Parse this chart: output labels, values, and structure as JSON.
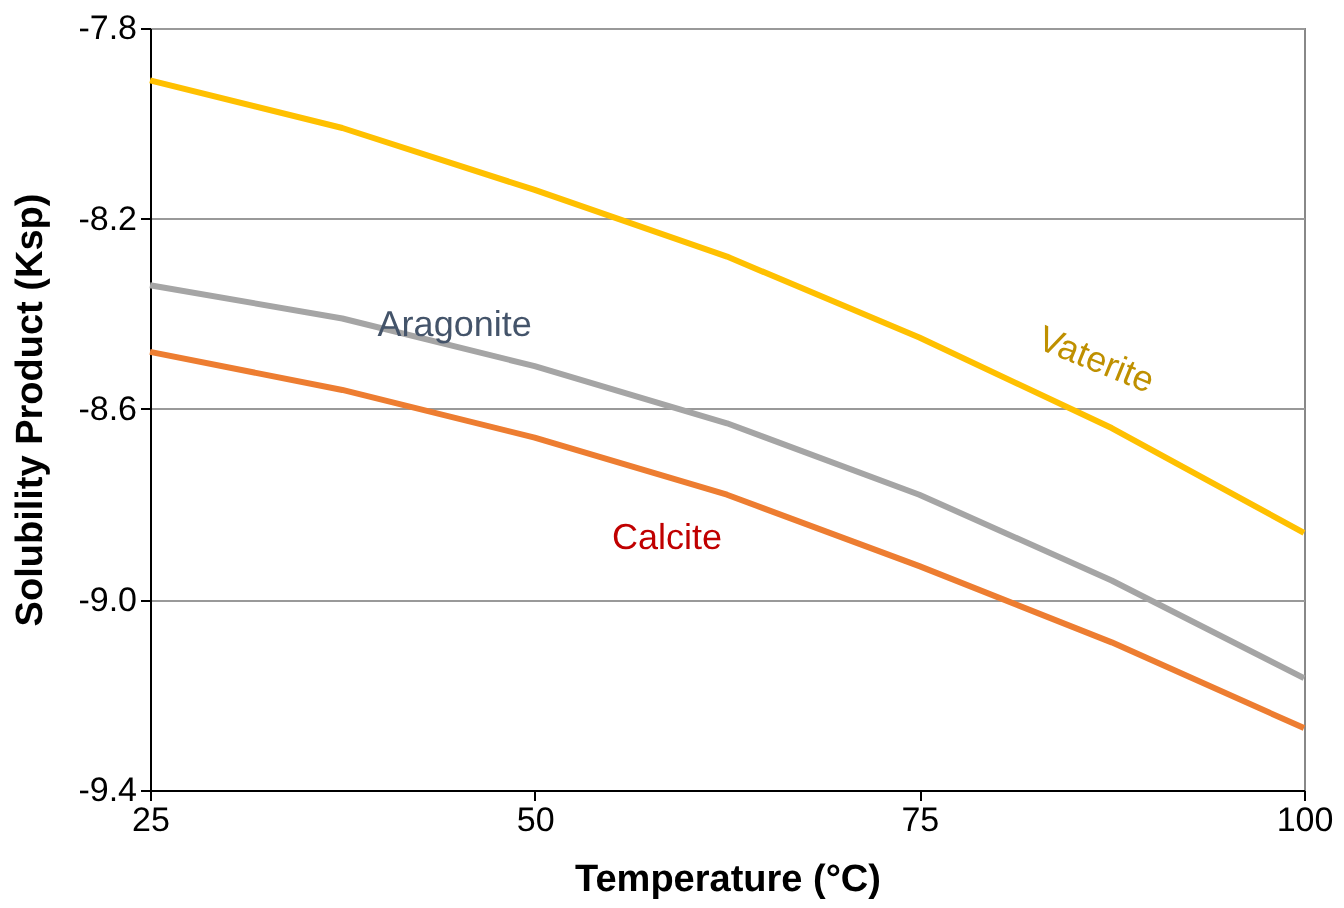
{
  "chart_data": {
    "type": "line",
    "xlabel": "Temperature (°C)",
    "ylabel": "Solubility Product (Ksp)",
    "x": [
      25,
      37.5,
      50,
      62.5,
      75,
      87.5,
      100
    ],
    "series": [
      {
        "name": "Vaterite",
        "color": "#ffc000",
        "values": [
          -7.91,
          -8.01,
          -8.14,
          -8.28,
          -8.45,
          -8.64,
          -8.86
        ]
      },
      {
        "name": "Aragonite",
        "color": "#a5a5a5",
        "values": [
          -8.34,
          -8.41,
          -8.51,
          -8.63,
          -8.78,
          -8.96,
          -9.165
        ]
      },
      {
        "name": "Calcite",
        "color": "#ed7d31",
        "values": [
          -8.48,
          -8.56,
          -8.66,
          -8.78,
          -8.93,
          -9.09,
          -9.27
        ]
      }
    ],
    "xlim": [
      25,
      100
    ],
    "xticks": [
      25,
      50,
      75,
      100
    ],
    "ylim": [
      -9.4,
      -7.8
    ],
    "yticks": [
      {
        "value": -9.4,
        "label": "-9.4"
      },
      {
        "value": -9.0,
        "label": "-9.0"
      },
      {
        "value": -8.6,
        "label": "-8.6"
      },
      {
        "value": -8.2,
        "label": "-8.2"
      },
      {
        "value": -7.8,
        "label": "-7.8"
      }
    ],
    "grid": "y",
    "legend": false,
    "marker": "none",
    "line_style": "solid"
  }
}
